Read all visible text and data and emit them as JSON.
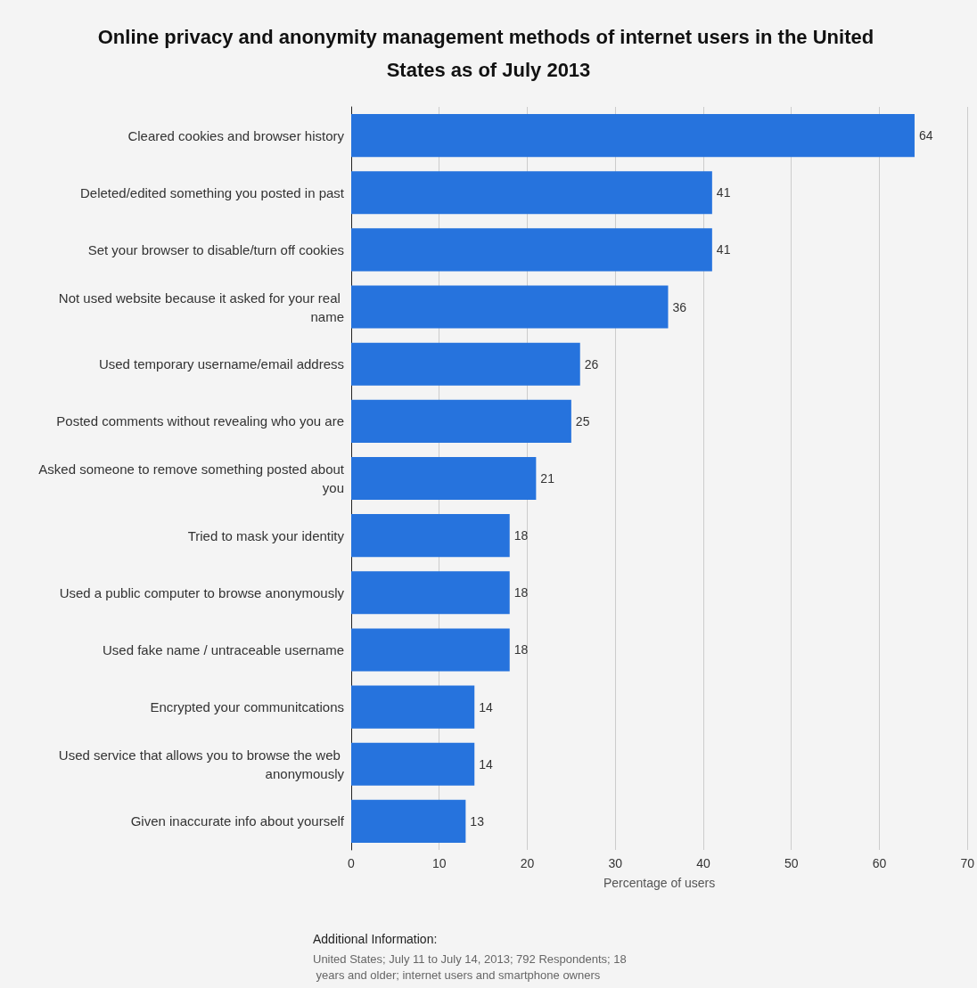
{
  "chart_data": {
    "type": "bar",
    "orientation": "horizontal",
    "title": "Online privacy and anonymity management methods of internet users in the United States as of July 2013",
    "xlabel": "Percentage of users",
    "categories": [
      "Cleared cookies and browser history",
      "Deleted/edited something you posted in past",
      "Set your browser to disable/turn off cookies",
      "Not used website because it asked for your real name",
      "Used temporary username/email address",
      "Posted comments without revealing who you are",
      "Asked someone to remove something posted about you",
      "Tried to mask your identity",
      "Used a public computer to browse anonymously",
      "Used fake name / untraceable username",
      "Encrypted your communitcations",
      "Used service that allows you to browse the web anonymously",
      "Given inaccurate info about yourself"
    ],
    "values": [
      64,
      41,
      41,
      36,
      26,
      25,
      21,
      18,
      18,
      18,
      14,
      14,
      13
    ],
    "color": "#2673dd",
    "data_labels": true,
    "xlim": [
      0,
      70
    ],
    "xticks": [
      0,
      10,
      20,
      30,
      40,
      50,
      60,
      70
    ],
    "grid": "x",
    "annotations": [
      "Additional Information:",
      "United States; July 11 to July 14, 2013; 792 Respondents; 18 years and older; internet users and smartphone owners"
    ]
  }
}
